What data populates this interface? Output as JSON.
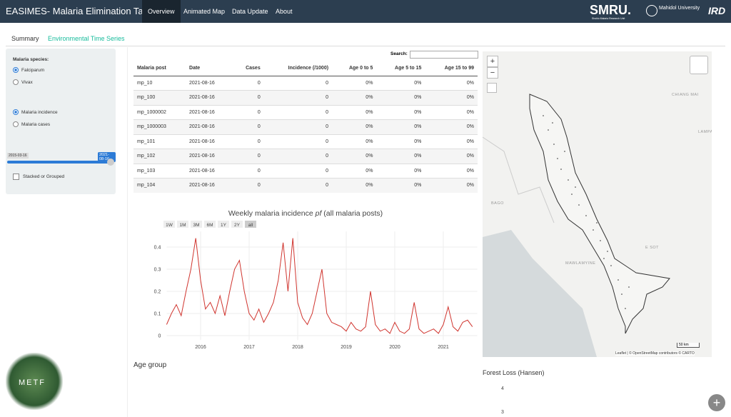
{
  "navbar": {
    "title": "EASIMES- Malaria Elimination Task Force",
    "items": [
      "Overview",
      "Animated Map",
      "Data Update",
      "About"
    ],
    "active": 0,
    "logos": {
      "smru": "SMRU.",
      "smru_sub": "Shoklo Malaria Research Unit",
      "mahidol": "Mahidol University",
      "ird": "IRD"
    }
  },
  "tabs": {
    "items": [
      "Summary",
      "Environmental Time Series"
    ],
    "active": 0
  },
  "sidebar": {
    "species_label": "Malaria species:",
    "species": [
      "Falciparum",
      "Vivax"
    ],
    "species_selected": 0,
    "metrics": [
      "Malaria incidence",
      "Malaria cases"
    ],
    "metric_selected": 0,
    "slider": {
      "start": "2015-03-16",
      "end": "2021-08-16"
    },
    "checkbox": "Stacked or Grouped"
  },
  "metf_logo": "METF",
  "table": {
    "search_label": "Search:",
    "columns": [
      "Malaria post",
      "Date",
      "Cases",
      "Incidence (/1000)",
      "Age 0 to 5",
      "Age 5 to 15",
      "Age 15 to 99"
    ],
    "rows": [
      [
        "mp_10",
        "2021-08-16",
        0,
        0,
        "0%",
        "0%",
        "0%"
      ],
      [
        "mp_100",
        "2021-08-16",
        0,
        0,
        "0%",
        "0%",
        "0%"
      ],
      [
        "mp_1000002",
        "2021-08-16",
        0,
        0,
        "0%",
        "0%",
        "0%"
      ],
      [
        "mp_1000003",
        "2021-08-16",
        0,
        0,
        "0%",
        "0%",
        "0%"
      ],
      [
        "mp_101",
        "2021-08-16",
        0,
        0,
        "0%",
        "0%",
        "0%"
      ],
      [
        "mp_102",
        "2021-08-16",
        0,
        0,
        "0%",
        "0%",
        "0%"
      ],
      [
        "mp_103",
        "2021-08-16",
        0,
        0,
        "0%",
        "0%",
        "0%"
      ],
      [
        "mp_104",
        "2021-08-16",
        0,
        0,
        "0%",
        "0%",
        "0%"
      ]
    ]
  },
  "incidence_chart": {
    "type": "line",
    "title": "Weekly malaria incidence",
    "title_italic": "pf",
    "title_suffix": "(all malaria posts)",
    "range_buttons": [
      "1W",
      "1M",
      "3M",
      "6M",
      "1Y",
      "2Y",
      "all"
    ],
    "range_active": 6,
    "x": [
      2015.3,
      2015.4,
      2015.5,
      2015.6,
      2015.7,
      2015.8,
      2015.9,
      2016.0,
      2016.1,
      2016.2,
      2016.3,
      2016.4,
      2016.5,
      2016.6,
      2016.7,
      2016.8,
      2016.9,
      2017.0,
      2017.1,
      2017.2,
      2017.3,
      2017.4,
      2017.5,
      2017.6,
      2017.7,
      2017.8,
      2017.9,
      2018.0,
      2018.1,
      2018.2,
      2018.3,
      2018.4,
      2018.5,
      2018.6,
      2018.7,
      2018.8,
      2018.9,
      2019.0,
      2019.1,
      2019.2,
      2019.3,
      2019.4,
      2019.5,
      2019.6,
      2019.7,
      2019.8,
      2019.9,
      2020.0,
      2020.1,
      2020.2,
      2020.3,
      2020.4,
      2020.5,
      2020.6,
      2020.7,
      2020.8,
      2020.9,
      2021.0,
      2021.1,
      2021.2,
      2021.3,
      2021.4,
      2021.5,
      2021.6
    ],
    "series": [
      {
        "color": "#d0352f",
        "values": [
          0.05,
          0.1,
          0.14,
          0.09,
          0.2,
          0.3,
          0.44,
          0.25,
          0.12,
          0.15,
          0.1,
          0.18,
          0.09,
          0.2,
          0.3,
          0.34,
          0.2,
          0.1,
          0.07,
          0.12,
          0.06,
          0.1,
          0.15,
          0.25,
          0.42,
          0.2,
          0.44,
          0.15,
          0.08,
          0.05,
          0.1,
          0.2,
          0.3,
          0.1,
          0.06,
          0.05,
          0.04,
          0.02,
          0.06,
          0.03,
          0.02,
          0.04,
          0.2,
          0.05,
          0.02,
          0.03,
          0.01,
          0.06,
          0.02,
          0.01,
          0.03,
          0.15,
          0.03,
          0.01,
          0.02,
          0.03,
          0.01,
          0.05,
          0.13,
          0.04,
          0.02,
          0.06,
          0.07,
          0.04
        ]
      }
    ],
    "xlim": [
      2015.3,
      2021.7
    ],
    "ylim": [
      -0.02,
      0.47
    ],
    "xticks": [
      2016,
      2017,
      2018,
      2019,
      2020,
      2021
    ],
    "yticks": [
      0,
      0.1,
      0.2,
      0.3,
      0.4
    ],
    "grid": true
  },
  "map": {
    "zoom_in": "+",
    "zoom_out": "−",
    "labels": [
      "CHIANG MAI",
      "LAMPA",
      "BAGO",
      "MAWLAMYINE",
      "E SOT"
    ],
    "scale": "50 km",
    "attribution": "Leaflet | © OpenStreetMap contributors © CARTO"
  },
  "age_group": {
    "title": "Age group"
  },
  "forest_loss": {
    "title": "Forest Loss (Hansen)",
    "ticks": [
      4,
      3
    ]
  }
}
